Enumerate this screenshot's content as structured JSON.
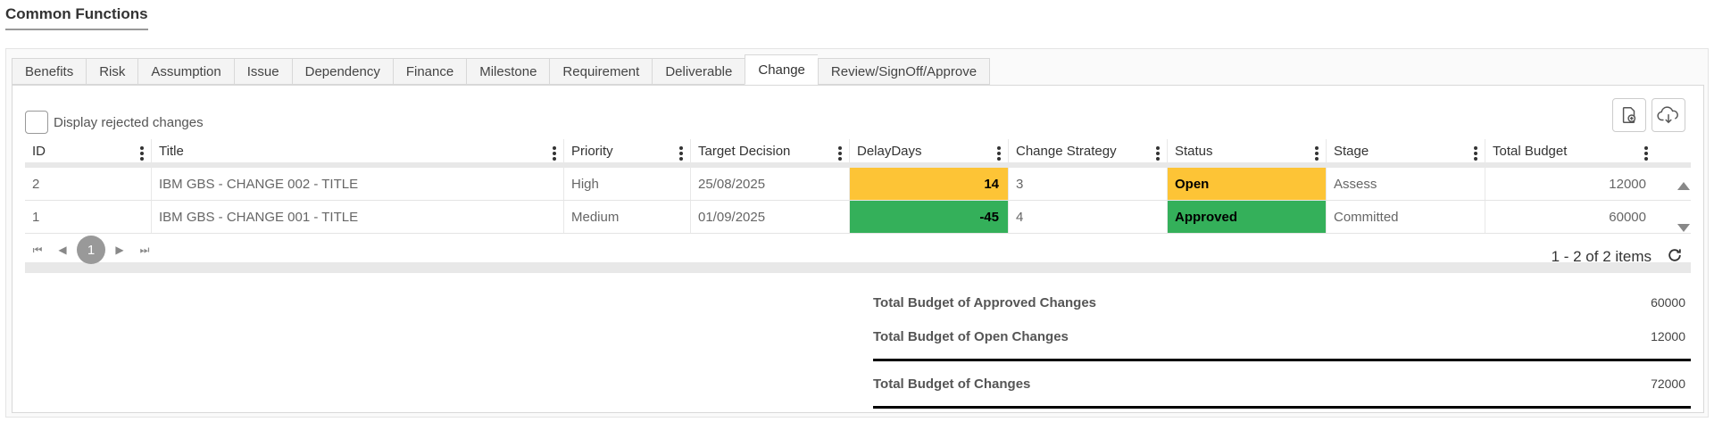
{
  "section": {
    "title": "Common Functions"
  },
  "tabs": [
    {
      "label": "Benefits",
      "active": false
    },
    {
      "label": "Risk",
      "active": false
    },
    {
      "label": "Assumption",
      "active": false
    },
    {
      "label": "Issue",
      "active": false
    },
    {
      "label": "Dependency",
      "active": false
    },
    {
      "label": "Finance",
      "active": false
    },
    {
      "label": "Milestone",
      "active": false
    },
    {
      "label": "Requirement",
      "active": false
    },
    {
      "label": "Deliverable",
      "active": false
    },
    {
      "label": "Change",
      "active": true
    },
    {
      "label": "Review/SignOff/Approve",
      "active": false
    }
  ],
  "filter": {
    "reject_label": "Display rejected changes",
    "checked": false
  },
  "toolbar": {
    "buttons": [
      "new-document-icon",
      "cloud-download-icon"
    ]
  },
  "grid": {
    "columns": [
      "ID",
      "Title",
      "Priority",
      "Target Decision",
      "DelayDays",
      "Change Strategy",
      "Status",
      "Stage",
      "Total Budget"
    ],
    "rows": [
      {
        "id": "2",
        "title": "IBM GBS - CHANGE 002 - TITLE",
        "priority": "High",
        "target_decision": "25/08/2025",
        "delay_days": "14",
        "change_strategy": "3",
        "status": "Open",
        "stage": "Assess",
        "total_budget": "12000",
        "highlight_color": "#fdc436"
      },
      {
        "id": "1",
        "title": "IBM GBS - CHANGE 001 - TITLE",
        "priority": "Medium",
        "target_decision": "01/09/2025",
        "delay_days": "-45",
        "change_strategy": "4",
        "status": "Approved",
        "stage": "Committed",
        "total_budget": "60000",
        "highlight_color": "#34b05a"
      }
    ]
  },
  "pager": {
    "current_page": "1",
    "info": "1 - 2 of 2 items"
  },
  "summary": {
    "approved_label": "Total Budget of Approved Changes",
    "approved_value": "60000",
    "open_label": "Total Budget of Open Changes",
    "open_value": "12000",
    "total_label": "Total Budget of Changes",
    "total_value": "72000"
  }
}
